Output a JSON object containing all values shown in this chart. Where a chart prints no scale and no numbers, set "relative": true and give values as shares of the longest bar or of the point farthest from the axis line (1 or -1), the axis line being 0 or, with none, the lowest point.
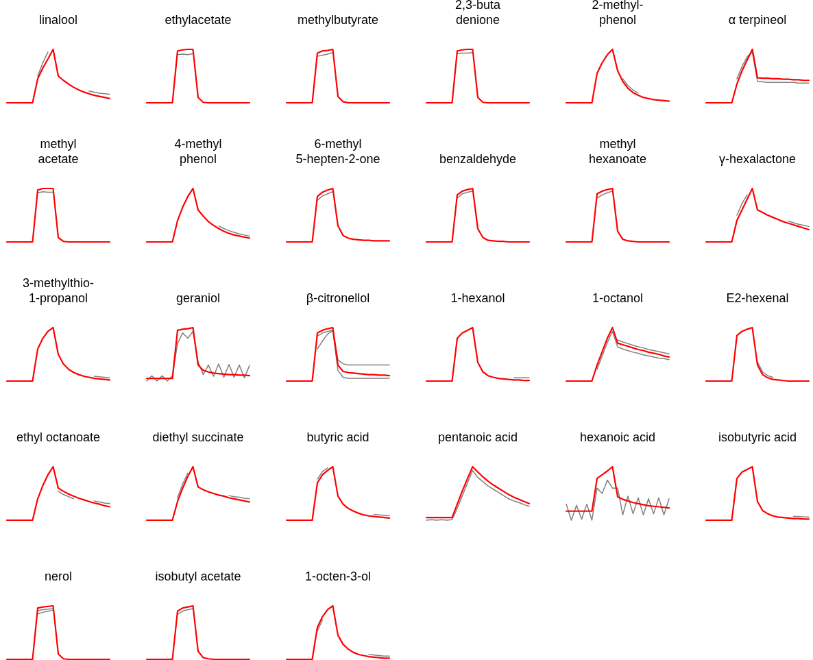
{
  "chart_data": [
    {
      "type": "line",
      "title": "linalool",
      "relative": true,
      "categories": [
        null,
        null,
        null,
        null,
        null,
        null,
        null,
        null,
        null,
        null,
        null,
        null,
        null,
        null,
        null,
        null,
        null,
        null,
        null,
        null,
        null
      ],
      "series": [
        {
          "color": "#808080",
          "values": [
            null,
            null,
            null,
            null,
            null,
            null,
            0.5,
            0.75,
            0.95,
            null,
            null,
            null,
            null,
            null,
            null,
            null,
            0.22,
            0.2,
            0.18,
            0.17,
            0.16
          ]
        },
        {
          "color": "#ff0000",
          "values": [
            0,
            0,
            0,
            0,
            0,
            0,
            0.45,
            0.65,
            0.82,
            1,
            0.5,
            0.42,
            0.35,
            0.29,
            0.24,
            0.2,
            0.17,
            0.14,
            0.12,
            0.1,
            0.08
          ]
        }
      ]
    },
    {
      "type": "line",
      "title": "ethylacetate",
      "relative": true,
      "categories": [
        null,
        null,
        null,
        null,
        null,
        null,
        null,
        null,
        null,
        null,
        null,
        null,
        null,
        null,
        null,
        null,
        null,
        null,
        null,
        null,
        null
      ],
      "series": [
        {
          "color": "#808080",
          "values": [
            null,
            null,
            null,
            null,
            null,
            null,
            0.9,
            0.91,
            0.9,
            0.92,
            null,
            null,
            null,
            null,
            null,
            null,
            null,
            null,
            null,
            null,
            null
          ]
        },
        {
          "color": "#ff0000",
          "values": [
            0,
            0,
            0,
            0,
            0,
            0,
            0.97,
            0.99,
            1,
            1,
            0.1,
            0.01,
            0,
            0,
            0,
            0,
            0,
            0,
            0,
            0,
            0
          ]
        }
      ]
    },
    {
      "type": "line",
      "title": "methylbutyrate",
      "relative": true,
      "categories": [
        null,
        null,
        null,
        null,
        null,
        null,
        null,
        null,
        null,
        null,
        null,
        null,
        null,
        null,
        null,
        null,
        null,
        null,
        null,
        null,
        null
      ],
      "series": [
        {
          "color": "#808080",
          "values": [
            null,
            null,
            null,
            null,
            null,
            null,
            0.87,
            0.89,
            0.91,
            0.94,
            null,
            null,
            null,
            null,
            null,
            null,
            null,
            null,
            null,
            null,
            null
          ]
        },
        {
          "color": "#ff0000",
          "values": [
            0,
            0,
            0,
            0,
            0,
            0,
            0.93,
            0.97,
            0.98,
            1,
            0.12,
            0.02,
            0,
            0,
            0,
            0,
            0,
            0,
            0,
            0,
            0
          ]
        }
      ]
    },
    {
      "type": "line",
      "title": "2,3-buta\ndenione",
      "relative": true,
      "categories": [
        null,
        null,
        null,
        null,
        null,
        null,
        null,
        null,
        null,
        null,
        null,
        null,
        null,
        null,
        null,
        null,
        null,
        null,
        null,
        null,
        null
      ],
      "series": [
        {
          "color": "#808080",
          "values": [
            null,
            null,
            null,
            null,
            null,
            null,
            0.92,
            0.93,
            0.93,
            0.94,
            null,
            null,
            null,
            null,
            null,
            null,
            null,
            null,
            null,
            null,
            null
          ]
        },
        {
          "color": "#ff0000",
          "values": [
            0,
            0,
            0,
            0,
            0,
            0,
            0.97,
            0.99,
            1,
            1,
            0.1,
            0.01,
            0,
            0,
            0,
            0,
            0,
            0,
            0,
            0,
            0
          ]
        }
      ]
    },
    {
      "type": "line",
      "title": "2-methyl-\nphenol",
      "relative": true,
      "categories": [
        null,
        null,
        null,
        null,
        null,
        null,
        null,
        null,
        null,
        null,
        null,
        null,
        null,
        null,
        null,
        null,
        null,
        null,
        null,
        null,
        null
      ],
      "series": [
        {
          "color": "#808080",
          "values": [
            null,
            null,
            null,
            null,
            null,
            null,
            null,
            null,
            null,
            null,
            null,
            0.45,
            0.32,
            0.24,
            0.18,
            null,
            null,
            null,
            null,
            null,
            null
          ]
        },
        {
          "color": "#ff0000",
          "values": [
            0,
            0,
            0,
            0,
            0,
            0,
            0.55,
            0.75,
            0.9,
            1,
            0.6,
            0.4,
            0.27,
            0.19,
            0.14,
            0.1,
            0.08,
            0.06,
            0.05,
            0.04,
            0.03
          ]
        }
      ]
    },
    {
      "type": "line",
      "title": "α terpineol",
      "relative": true,
      "categories": [
        null,
        null,
        null,
        null,
        null,
        null,
        null,
        null,
        null,
        null,
        null,
        null,
        null,
        null,
        null,
        null,
        null,
        null,
        null,
        null,
        null
      ],
      "series": [
        {
          "color": "#808080",
          "values": [
            null,
            null,
            null,
            null,
            null,
            null,
            0.45,
            0.68,
            0.86,
            0.95,
            0.4,
            0.39,
            0.38,
            0.38,
            0.38,
            0.38,
            0.38,
            0.38,
            0.37,
            0.37,
            0.37
          ]
        },
        {
          "color": "#ff0000",
          "values": [
            0,
            0,
            0,
            0,
            0,
            0,
            0.35,
            0.6,
            0.8,
            1,
            0.47,
            0.46,
            0.46,
            0.45,
            0.45,
            0.44,
            0.44,
            0.43,
            0.43,
            0.42,
            0.42
          ]
        }
      ]
    },
    {
      "type": "line",
      "title": "methyl\nacetate",
      "relative": true,
      "categories": [
        null,
        null,
        null,
        null,
        null,
        null,
        null,
        null,
        null,
        null,
        null,
        null,
        null,
        null,
        null,
        null,
        null,
        null,
        null,
        null,
        null
      ],
      "series": [
        {
          "color": "#808080",
          "values": [
            null,
            null,
            null,
            null,
            null,
            null,
            0.92,
            0.94,
            0.93,
            0.93,
            null,
            null,
            null,
            null,
            null,
            null,
            null,
            null,
            null,
            null,
            null
          ]
        },
        {
          "color": "#ff0000",
          "values": [
            0,
            0,
            0,
            0,
            0,
            0,
            0.97,
            1,
            1,
            1,
            0.08,
            0.01,
            0,
            0,
            0,
            0,
            0,
            0,
            0,
            0,
            0
          ]
        }
      ]
    },
    {
      "type": "line",
      "title": "4-methyl\nphenol",
      "relative": true,
      "categories": [
        null,
        null,
        null,
        null,
        null,
        null,
        null,
        null,
        null,
        null,
        null,
        null,
        null,
        null,
        null,
        null,
        null,
        null,
        null,
        null,
        null
      ],
      "series": [
        {
          "color": "#808080",
          "values": [
            null,
            null,
            null,
            null,
            null,
            null,
            null,
            null,
            null,
            null,
            null,
            null,
            null,
            null,
            0.3,
            0.25,
            0.21,
            0.18,
            0.15,
            0.13,
            0.11
          ]
        },
        {
          "color": "#ff0000",
          "values": [
            0,
            0,
            0,
            0,
            0,
            0,
            0.4,
            0.65,
            0.85,
            1,
            0.6,
            0.48,
            0.38,
            0.31,
            0.25,
            0.2,
            0.16,
            0.13,
            0.11,
            0.09,
            0.07
          ]
        }
      ]
    },
    {
      "type": "line",
      "title": "6-methyl\n5-hepten-2-one",
      "relative": true,
      "categories": [
        null,
        null,
        null,
        null,
        null,
        null,
        null,
        null,
        null,
        null,
        null,
        null,
        null,
        null,
        null,
        null,
        null,
        null,
        null,
        null,
        null
      ],
      "series": [
        {
          "color": "#808080",
          "values": [
            null,
            null,
            null,
            null,
            null,
            null,
            0.78,
            0.86,
            0.9,
            0.94,
            null,
            null,
            null,
            null,
            null,
            null,
            null,
            null,
            null,
            null,
            null
          ]
        },
        {
          "color": "#ff0000",
          "values": [
            0,
            0,
            0,
            0,
            0,
            0,
            0.85,
            0.93,
            0.97,
            1,
            0.3,
            0.12,
            0.07,
            0.05,
            0.04,
            0.03,
            0.03,
            0.02,
            0.02,
            0.02,
            0.02
          ]
        }
      ]
    },
    {
      "type": "line",
      "title": "benzaldehyde",
      "relative": true,
      "categories": [
        null,
        null,
        null,
        null,
        null,
        null,
        null,
        null,
        null,
        null,
        null,
        null,
        null,
        null,
        null,
        null,
        null,
        null,
        null,
        null,
        null
      ],
      "series": [
        {
          "color": "#808080",
          "values": [
            null,
            null,
            null,
            null,
            null,
            null,
            0.82,
            0.9,
            0.93,
            0.95,
            null,
            null,
            null,
            null,
            null,
            null,
            null,
            null,
            null,
            null,
            null
          ]
        },
        {
          "color": "#ff0000",
          "values": [
            0,
            0,
            0,
            0,
            0,
            0,
            0.88,
            0.95,
            0.98,
            1,
            0.25,
            0.08,
            0.03,
            0.02,
            0.01,
            0.01,
            0,
            0,
            0,
            0,
            0
          ]
        }
      ]
    },
    {
      "type": "line",
      "title": "methyl\nhexanoate",
      "relative": true,
      "categories": [
        null,
        null,
        null,
        null,
        null,
        null,
        null,
        null,
        null,
        null,
        null,
        null,
        null,
        null,
        null,
        null,
        null,
        null,
        null,
        null,
        null
      ],
      "series": [
        {
          "color": "#808080",
          "values": [
            null,
            null,
            null,
            null,
            null,
            null,
            0.82,
            0.88,
            0.92,
            0.95,
            null,
            null,
            null,
            null,
            null,
            null,
            null,
            null,
            null,
            null,
            null
          ]
        },
        {
          "color": "#ff0000",
          "values": [
            0,
            0,
            0,
            0,
            0,
            0,
            0.9,
            0.95,
            0.98,
            1,
            0.2,
            0.05,
            0.02,
            0.01,
            0,
            0,
            0,
            0,
            0,
            0,
            0
          ]
        }
      ]
    },
    {
      "type": "line",
      "title": "γ-hexalactone",
      "relative": true,
      "categories": [
        null,
        null,
        null,
        null,
        null,
        null,
        null,
        null,
        null,
        null,
        null,
        null,
        null,
        null,
        null,
        null,
        null,
        null,
        null,
        null,
        null
      ],
      "series": [
        {
          "color": "#808080",
          "values": [
            null,
            null,
            null,
            null,
            null,
            null,
            0.5,
            0.72,
            0.88,
            null,
            null,
            null,
            null,
            null,
            null,
            null,
            0.39,
            0.36,
            0.33,
            0.31,
            0.29
          ]
        },
        {
          "color": "#ff0000",
          "values": [
            0,
            0,
            0,
            0,
            0,
            0,
            0.4,
            0.6,
            0.8,
            1,
            0.6,
            0.55,
            0.5,
            0.46,
            0.42,
            0.38,
            0.35,
            0.32,
            0.29,
            0.26,
            0.23
          ]
        }
      ]
    },
    {
      "type": "line",
      "title": "3-methylthio-\n1-propanol",
      "relative": true,
      "categories": [
        null,
        null,
        null,
        null,
        null,
        null,
        null,
        null,
        null,
        null,
        null,
        null,
        null,
        null,
        null,
        null,
        null,
        null,
        null,
        null,
        null
      ],
      "series": [
        {
          "color": "#808080",
          "values": [
            null,
            null,
            null,
            null,
            null,
            null,
            null,
            null,
            null,
            null,
            null,
            null,
            null,
            null,
            null,
            null,
            null,
            0.09,
            0.08,
            0.07,
            0.06
          ]
        },
        {
          "color": "#ff0000",
          "values": [
            0,
            0,
            0,
            0,
            0,
            0,
            0.6,
            0.8,
            0.93,
            1,
            0.5,
            0.32,
            0.22,
            0.16,
            0.12,
            0.09,
            0.07,
            0.05,
            0.04,
            0.03,
            0.02
          ]
        }
      ]
    },
    {
      "type": "line",
      "title": "geraniol",
      "relative": true,
      "categories": [
        null,
        null,
        null,
        null,
        null,
        null,
        null,
        null,
        null,
        null,
        null,
        null,
        null,
        null,
        null,
        null,
        null,
        null,
        null,
        null,
        null
      ],
      "series": [
        {
          "color": "#808080",
          "values": [
            0,
            0.1,
            0,
            0.1,
            0,
            0.1,
            0.7,
            0.9,
            0.8,
            0.93,
            0.36,
            0.12,
            0.3,
            0.09,
            0.32,
            0.07,
            0.31,
            0.07,
            0.3,
            0.06,
            0.29
          ]
        },
        {
          "color": "#ff0000",
          "values": [
            0.05,
            0.05,
            0.05,
            0.05,
            0.05,
            0.05,
            0.95,
            0.97,
            0.98,
            1,
            0.3,
            0.2,
            0.17,
            0.15,
            0.14,
            0.13,
            0.12,
            0.12,
            0.11,
            0.11,
            0.1
          ]
        }
      ]
    },
    {
      "type": "line",
      "title": "β-citronellol",
      "relative": true,
      "categories": [
        null,
        null,
        null,
        null,
        null,
        null,
        null,
        null,
        null,
        null,
        null,
        null,
        null,
        null,
        null,
        null,
        null,
        null,
        null,
        null,
        null
      ],
      "series": [
        {
          "color": "#808080",
          "values": [
            null,
            null,
            null,
            null,
            null,
            null,
            0.84,
            0.9,
            0.93,
            0.95,
            0.4,
            0.32,
            0.3,
            0.3,
            0.3,
            0.3,
            0.3,
            0.3,
            0.3,
            0.3,
            0.3
          ]
        },
        {
          "color": "#808080",
          "values": [
            null,
            null,
            null,
            null,
            null,
            null,
            0.6,
            0.75,
            0.88,
            0.94,
            0.2,
            0.07,
            0.05,
            0.05,
            0.05,
            0.05,
            0.05,
            0.05,
            0.05,
            0.05,
            0.05
          ]
        },
        {
          "color": "#ff0000",
          "values": [
            0,
            0,
            0,
            0,
            0,
            0,
            0.9,
            0.95,
            0.98,
            1,
            0.3,
            0.18,
            0.16,
            0.15,
            0.14,
            0.13,
            0.12,
            0.12,
            0.11,
            0.11,
            0.1
          ]
        }
      ]
    },
    {
      "type": "line",
      "title": "1-hexanol",
      "relative": true,
      "categories": [
        null,
        null,
        null,
        null,
        null,
        null,
        null,
        null,
        null,
        null,
        null,
        null,
        null,
        null,
        null,
        null,
        null,
        null,
        null,
        null,
        null
      ],
      "series": [
        {
          "color": "#808080",
          "values": [
            null,
            null,
            null,
            null,
            null,
            null,
            null,
            null,
            null,
            null,
            null,
            null,
            null,
            null,
            null,
            null,
            null,
            0.06,
            0.06,
            0.06,
            0.06
          ]
        },
        {
          "color": "#ff0000",
          "values": [
            0,
            0,
            0,
            0,
            0,
            0,
            0.8,
            0.9,
            0.95,
            1,
            0.35,
            0.17,
            0.1,
            0.07,
            0.05,
            0.04,
            0.03,
            0.02,
            0.02,
            0.01,
            0.01
          ]
        }
      ]
    },
    {
      "type": "line",
      "title": "1-octanol",
      "relative": true,
      "categories": [
        null,
        null,
        null,
        null,
        null,
        null,
        null,
        null,
        null,
        null,
        null,
        null,
        null,
        null,
        null,
        null,
        null,
        null,
        null,
        null,
        null
      ],
      "series": [
        {
          "color": "#808080",
          "values": [
            null,
            null,
            null,
            null,
            null,
            null,
            null,
            null,
            null,
            null,
            0.77,
            0.73,
            0.7,
            0.67,
            0.64,
            0.62,
            0.59,
            0.57,
            0.55,
            0.53,
            0.51
          ]
        },
        {
          "color": "#808080",
          "values": [
            null,
            null,
            null,
            null,
            null,
            null,
            0.22,
            0.47,
            0.72,
            0.93,
            0.64,
            0.6,
            0.57,
            0.54,
            0.52,
            0.49,
            0.47,
            0.45,
            0.43,
            0.42,
            0.4
          ]
        },
        {
          "color": "#ff0000",
          "values": [
            0,
            0,
            0,
            0,
            0,
            0,
            0.3,
            0.55,
            0.8,
            1,
            0.71,
            0.68,
            0.65,
            0.62,
            0.59,
            0.57,
            0.54,
            0.52,
            0.5,
            0.47,
            0.45
          ]
        }
      ]
    },
    {
      "type": "line",
      "title": "E2-hexenal",
      "relative": true,
      "categories": [
        null,
        null,
        null,
        null,
        null,
        null,
        null,
        null,
        null,
        null,
        null,
        null,
        null,
        null,
        null,
        null,
        null,
        null,
        null,
        null,
        null
      ],
      "series": [
        {
          "color": "#808080",
          "values": [
            null,
            null,
            null,
            null,
            null,
            null,
            null,
            null,
            null,
            null,
            0.36,
            0.17,
            0.1,
            0.07,
            null,
            null,
            null,
            null,
            null,
            null,
            null
          ]
        },
        {
          "color": "#ff0000",
          "values": [
            0,
            0,
            0,
            0,
            0,
            0,
            0.85,
            0.93,
            0.97,
            1,
            0.3,
            0.12,
            0.06,
            0.03,
            0.02,
            0.01,
            0,
            0,
            0,
            0,
            0
          ]
        }
      ]
    },
    {
      "type": "line",
      "title": "ethyl octanoate",
      "relative": true,
      "categories": [
        null,
        null,
        null,
        null,
        null,
        null,
        null,
        null,
        null,
        null,
        null,
        null,
        null,
        null,
        null,
        null,
        null,
        null,
        null,
        null,
        null
      ],
      "series": [
        {
          "color": "#808080",
          "values": [
            null,
            null,
            null,
            null,
            null,
            null,
            null,
            null,
            null,
            null,
            0.54,
            0.48,
            0.44,
            0.4,
            null,
            null,
            null,
            0.36,
            0.34,
            0.32,
            0.31
          ]
        },
        {
          "color": "#ff0000",
          "values": [
            0,
            0,
            0,
            0,
            0,
            0,
            0.4,
            0.65,
            0.85,
            1,
            0.6,
            0.54,
            0.49,
            0.45,
            0.41,
            0.38,
            0.35,
            0.32,
            0.3,
            0.27,
            0.25
          ]
        }
      ]
    },
    {
      "type": "line",
      "title": "diethyl succinate",
      "relative": true,
      "categories": [
        null,
        null,
        null,
        null,
        null,
        null,
        null,
        null,
        null,
        null,
        null,
        null,
        null,
        null,
        null,
        null,
        null,
        null,
        null,
        null,
        null
      ],
      "series": [
        {
          "color": "#808080",
          "values": [
            null,
            null,
            null,
            null,
            null,
            null,
            0.42,
            0.68,
            0.88,
            null,
            null,
            null,
            null,
            null,
            null,
            null,
            0.46,
            0.44,
            0.43,
            0.41,
            0.4
          ]
        },
        {
          "color": "#ff0000",
          "values": [
            0,
            0,
            0,
            0,
            0,
            0,
            0.35,
            0.6,
            0.82,
            1,
            0.62,
            0.57,
            0.53,
            0.5,
            0.47,
            0.45,
            0.42,
            0.4,
            0.38,
            0.36,
            0.34
          ]
        }
      ]
    },
    {
      "type": "line",
      "title": "butyric acid",
      "relative": true,
      "categories": [
        null,
        null,
        null,
        null,
        null,
        null,
        null,
        null,
        null,
        null,
        null,
        null,
        null,
        null,
        null,
        null,
        null,
        null,
        null,
        null,
        null
      ],
      "series": [
        {
          "color": "#808080",
          "values": [
            null,
            null,
            null,
            null,
            null,
            null,
            0.77,
            0.91,
            0.98,
            null,
            null,
            null,
            null,
            null,
            null,
            null,
            null,
            0.11,
            0.1,
            0.09,
            0.09
          ]
        },
        {
          "color": "#ff0000",
          "values": [
            0,
            0,
            0,
            0,
            0,
            0,
            0.7,
            0.85,
            0.93,
            1,
            0.45,
            0.3,
            0.22,
            0.17,
            0.13,
            0.1,
            0.08,
            0.07,
            0.06,
            0.05,
            0.04
          ]
        }
      ]
    },
    {
      "type": "line",
      "title": "pentanoic acid",
      "relative": true,
      "categories": [
        null,
        null,
        null,
        null,
        null,
        null,
        null,
        null,
        null,
        null,
        null,
        null,
        null,
        null,
        null,
        null,
        null,
        null,
        null,
        null,
        null
      ],
      "series": [
        {
          "color": "#808080",
          "values": [
            0,
            0.01,
            0,
            0.01,
            0,
            0.01,
            0.22,
            0.46,
            0.7,
            0.93,
            0.8,
            0.72,
            0.64,
            0.58,
            0.52,
            0.46,
            0.4,
            0.36,
            0.33,
            0.29,
            0.26
          ]
        },
        {
          "color": "#ff0000",
          "values": [
            0.05,
            0.05,
            0.05,
            0.05,
            0.05,
            0.05,
            0.3,
            0.55,
            0.78,
            1,
            0.9,
            0.81,
            0.73,
            0.66,
            0.6,
            0.54,
            0.48,
            0.43,
            0.39,
            0.35,
            0.31
          ]
        }
      ]
    },
    {
      "type": "line",
      "title": "hexanoic acid",
      "relative": true,
      "categories": [
        null,
        null,
        null,
        null,
        null,
        null,
        null,
        null,
        null,
        null,
        null,
        null,
        null,
        null,
        null,
        null,
        null,
        null,
        null,
        null,
        null
      ],
      "series": [
        {
          "color": "#808080",
          "values": [
            0.3,
            0,
            0.28,
            0.02,
            0.3,
            0,
            0.6,
            0.5,
            0.75,
            0.6,
            0.6,
            0.1,
            0.45,
            0.12,
            0.42,
            0.1,
            0.4,
            0.12,
            0.42,
            0.1,
            0.4
          ]
        },
        {
          "color": "#ff0000",
          "values": [
            0.17,
            0.17,
            0.17,
            0.17,
            0.17,
            0.17,
            0.78,
            0.85,
            0.92,
            1,
            0.44,
            0.39,
            0.36,
            0.33,
            0.31,
            0.29,
            0.27,
            0.26,
            0.25,
            0.24,
            0.23
          ]
        }
      ]
    },
    {
      "type": "line",
      "title": "isobutyric acid",
      "relative": true,
      "categories": [
        null,
        null,
        null,
        null,
        null,
        null,
        null,
        null,
        null,
        null,
        null,
        null,
        null,
        null,
        null,
        null,
        null,
        null,
        null,
        null,
        null
      ],
      "series": [
        {
          "color": "#808080",
          "values": [
            null,
            null,
            null,
            null,
            null,
            null,
            null,
            null,
            null,
            null,
            null,
            null,
            null,
            null,
            null,
            null,
            null,
            0.07,
            0.07,
            0.06,
            0.06
          ]
        },
        {
          "color": "#ff0000",
          "values": [
            0,
            0,
            0,
            0,
            0,
            0,
            0.78,
            0.9,
            0.95,
            1,
            0.35,
            0.18,
            0.12,
            0.08,
            0.06,
            0.05,
            0.04,
            0.03,
            0.03,
            0.02,
            0.02
          ]
        }
      ]
    },
    {
      "type": "line",
      "title": "nerol",
      "relative": true,
      "categories": [
        null,
        null,
        null,
        null,
        null,
        null,
        null,
        null,
        null,
        null,
        null,
        null,
        null,
        null,
        null,
        null,
        null,
        null,
        null,
        null,
        null
      ],
      "series": [
        {
          "color": "#808080",
          "values": [
            null,
            null,
            null,
            null,
            null,
            null,
            0.85,
            0.88,
            0.9,
            0.92,
            null,
            null,
            null,
            null,
            null,
            null,
            null,
            null,
            null,
            null,
            null
          ]
        },
        {
          "color": "#808080",
          "values": [
            null,
            null,
            null,
            null,
            null,
            null,
            0.91,
            0.93,
            0.94,
            0.95,
            null,
            null,
            null,
            null,
            null,
            null,
            null,
            null,
            null,
            null,
            null
          ]
        },
        {
          "color": "#ff0000",
          "values": [
            0,
            0,
            0,
            0,
            0,
            0,
            0.96,
            0.98,
            0.99,
            1,
            0.1,
            0.01,
            0,
            0,
            0,
            0,
            0,
            0,
            0,
            0,
            0
          ]
        }
      ]
    },
    {
      "type": "line",
      "title": "isobutyl acetate",
      "relative": true,
      "categories": [
        null,
        null,
        null,
        null,
        null,
        null,
        null,
        null,
        null,
        null,
        null,
        null,
        null,
        null,
        null,
        null,
        null,
        null,
        null,
        null,
        null
      ],
      "series": [
        {
          "color": "#808080",
          "values": [
            null,
            null,
            null,
            null,
            null,
            null,
            0.84,
            0.9,
            0.93,
            0.95,
            null,
            null,
            null,
            null,
            null,
            null,
            null,
            null,
            null,
            null,
            null
          ]
        },
        {
          "color": "#ff0000",
          "values": [
            0,
            0,
            0,
            0,
            0,
            0,
            0.9,
            0.96,
            0.98,
            1,
            0.15,
            0.03,
            0.01,
            0,
            0,
            0,
            0,
            0,
            0,
            0,
            0
          ]
        }
      ]
    },
    {
      "type": "line",
      "title": "1-octen-3-ol",
      "relative": true,
      "categories": [
        null,
        null,
        null,
        null,
        null,
        null,
        null,
        null,
        null,
        null,
        null,
        null,
        null,
        null,
        null,
        null,
        null,
        null,
        null,
        null,
        null
      ],
      "series": [
        {
          "color": "#808080",
          "values": [
            null,
            null,
            null,
            null,
            null,
            null,
            0.53,
            0.74,
            null,
            null,
            null,
            null,
            null,
            null,
            null,
            null,
            0.09,
            0.08,
            0.07,
            0.06,
            0.06
          ]
        },
        {
          "color": "#ff0000",
          "values": [
            0,
            0,
            0,
            0,
            0,
            0,
            0.6,
            0.8,
            0.93,
            1,
            0.45,
            0.28,
            0.19,
            0.13,
            0.09,
            0.07,
            0.05,
            0.04,
            0.03,
            0.02,
            0.02
          ]
        }
      ]
    }
  ]
}
